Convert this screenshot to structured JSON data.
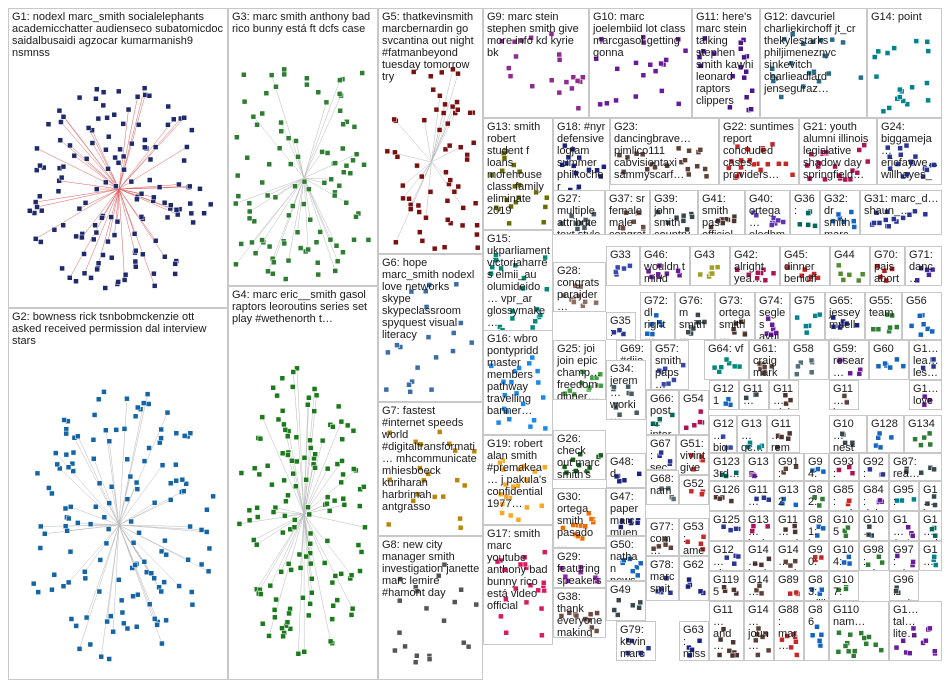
{
  "groups": [
    {
      "id": "G1",
      "label": "G1: nodexl marc_smith socialelephants academicchatter audienseco subatomicdoc saidalbusaidi agzocar kumarmanish9 nsmnss",
      "color": "#1f2a6b"
    },
    {
      "id": "G2",
      "label": "G2: bowness rick tsnbobmckenzie ott asked received permission dal interview stars",
      "color": "#1565a6"
    },
    {
      "id": "G3",
      "label": "G3: marc smith anthony bad rico bunny está ft dcfs case",
      "color": "#2e7d32"
    },
    {
      "id": "G4",
      "label": "G4: marc eric__smith gasol raptors leoroutins series set play #wethenorth t…",
      "color": "#1b7a1b"
    },
    {
      "id": "G5",
      "label": "G5: thatkevinsmith marcbernardin go svcantina out night #fatmanbeyond tuesday tomorrow try",
      "color": "#7b1010"
    },
    {
      "id": "G6",
      "label": "G6: hope marc_smith nodexl love networks skype skypeclassroom spyquest visual literacy",
      "color": "#3a6ea5"
    },
    {
      "id": "G7",
      "label": "G7: fastest #internet speeds world #digitaltransformati… mhcommunicate mhiesboeck kuriharan harbrimah antgrasso",
      "color": "#b8860b"
    },
    {
      "id": "G8",
      "label": "G8: new city manager smith investigation janette marc lemire #hamont day",
      "color": "#555555"
    },
    {
      "id": "G9",
      "label": "G9: marc stein stephen smith give more info kd kyrie bk",
      "color": "#8e2b8e"
    },
    {
      "id": "G10",
      "label": "G10: marc joelembiid lot class marcgasol getting gonna",
      "color": "#6a1b9a"
    },
    {
      "id": "G11",
      "label": "G11: here's marc stein talking stephen smith kawhi leonard raptors clippers",
      "color": "#4a148c"
    },
    {
      "id": "G12",
      "label": "G12: davcuriel charliekirchoff jt_cr thekylestarks philjimeneznyc sinkevitch charlieadlard jenseguraz…",
      "color": "#2a6a8a"
    },
    {
      "id": "G14",
      "label": "G14: point",
      "color": "#00838f"
    },
    {
      "id": "G13",
      "label": "G13: smith robert student f loans morehouse class family eliminate 2019",
      "color": "#6b6b00"
    },
    {
      "id": "G18",
      "label": "G18: #nyr defensive logjam summer philkocher blueshirtbanter…",
      "color": "#1a237e"
    },
    {
      "id": "G23",
      "label": "G23: dancingbrave… pimlico111 cabvisiontaxi sammyscarf…",
      "color": "#5d4037"
    },
    {
      "id": "G22",
      "label": "G22: suntimes report concluded cases providers…",
      "color": "#c62828"
    },
    {
      "id": "G21",
      "label": "G21: youth alumni illinois legislative shadow day springfield…",
      "color": "#ad1457"
    },
    {
      "id": "G24",
      "label": "G24: biggameja… ericfaywe… willhayes_… marvason…",
      "color": "#283593"
    },
    {
      "id": "G27",
      "label": "G27: multiple attribute text style transfer…",
      "color": "#455a64"
    },
    {
      "id": "G37",
      "label": "G37: sr female male congrat…",
      "color": "#6d4c41"
    },
    {
      "id": "G39",
      "label": "G39: john smith country…",
      "color": "#37474f"
    },
    {
      "id": "G41",
      "label": "G41: smith pas officiel…",
      "color": "#4e342e"
    },
    {
      "id": "G40",
      "label": "G40: ortega… eledhmel pinkiew…",
      "color": "#5e35b1"
    },
    {
      "id": "G36",
      "label": "G36:",
      "color": "#00695c"
    },
    {
      "id": "G32",
      "label": "G32: dr smith marc",
      "color": "#1565c0"
    },
    {
      "id": "G31",
      "label": "G31: marc_d… shaun_…",
      "color": "#283593"
    },
    {
      "id": "G15",
      "label": "G15: ukparliament victoriaharres elmii_au olumideido… vpr_ar glossymake…",
      "color": "#00897b"
    },
    {
      "id": "G28",
      "label": "G28: congrats parajder… winning thewhl…",
      "color": "#8d6e63"
    },
    {
      "id": "G33",
      "label": "G33",
      "color": "#3949ab"
    },
    {
      "id": "G46",
      "label": "G46: wouldn t mind",
      "color": "#6a1b9a"
    },
    {
      "id": "G43",
      "label": "G43",
      "color": "#9e9d24"
    },
    {
      "id": "G42",
      "label": "G42: alright yea…",
      "color": "#ad1457"
    },
    {
      "id": "G45",
      "label": "G45: dinner benioff…",
      "color": "#c62828"
    },
    {
      "id": "G44",
      "label": "G44",
      "color": "#558b2f"
    },
    {
      "id": "G70",
      "label": "G70: pais abort…",
      "color": "#b71c1c"
    },
    {
      "id": "G71",
      "label": "G71: danc… walla…",
      "color": "#4527a0"
    },
    {
      "id": "G35",
      "label": "G35: incred…",
      "color": "#283593"
    },
    {
      "id": "G72",
      "label": "G72: dl right…",
      "color": "#1565c0"
    },
    {
      "id": "G76",
      "label": "G76: m smith…",
      "color": "#37474f"
    },
    {
      "id": "G73",
      "label": "G73: ortega smith…",
      "color": "#4e342e"
    },
    {
      "id": "G74",
      "label": "G74: segles avui…",
      "color": "#6a1b9a"
    },
    {
      "id": "G75",
      "label": "G75",
      "color": "#00838f"
    },
    {
      "id": "G65",
      "label": "G65: jessey muell…",
      "color": "#1a237e"
    },
    {
      "id": "G55",
      "label": "G55: team",
      "color": "#2e7d32"
    },
    {
      "id": "G56",
      "label": "G56",
      "color": "#1565c0"
    },
    {
      "id": "G16",
      "label": "G16: wbro pontypridd master members pathway travelling banner…",
      "color": "#1e88e5"
    },
    {
      "id": "G25",
      "label": "G25: joi join epic champ… freedom dinner…",
      "color": "#43a047"
    },
    {
      "id": "G69",
      "label": "G69: #dijon patte…",
      "color": "#8e24aa"
    },
    {
      "id": "G57",
      "label": "G57: smith paps…",
      "color": "#3949ab"
    },
    {
      "id": "G64",
      "label": "G64: vf",
      "color": "#00897b"
    },
    {
      "id": "G61",
      "label": "G61: craig mark…",
      "color": "#5d4037"
    },
    {
      "id": "G58",
      "label": "G58",
      "color": "#546e7a"
    },
    {
      "id": "G59",
      "label": "G59: resear… award…",
      "color": "#6a1b9a"
    },
    {
      "id": "G60",
      "label": "G60",
      "color": "#1565c0"
    },
    {
      "id": "G1x",
      "label": "G1… lea… les…",
      "color": "#283593"
    },
    {
      "id": "G34",
      "label": "G34: jerem… worki… way startin…",
      "color": "#455a64"
    },
    {
      "id": "G66",
      "label": "G66: post… inter…",
      "color": "#00695c"
    },
    {
      "id": "G54",
      "label": "G54",
      "color": "#ad1457"
    },
    {
      "id": "G121",
      "label": "G121 orte…",
      "color": "#1565c0"
    },
    {
      "id": "G11b",
      "label": "G11… gov…",
      "color": "#37474f"
    },
    {
      "id": "G11c",
      "label": "G11… ojal…",
      "color": "#4e342e"
    },
    {
      "id": "G11d",
      "label": "G11… boo…",
      "color": "#5d4037"
    },
    {
      "id": "G11e",
      "label": "G1… love…",
      "color": "#6a1b9a"
    },
    {
      "id": "G19",
      "label": "G19: robert alan smith #premakea… j pakula's confidential 1977…",
      "color": "#f9a825"
    },
    {
      "id": "G67",
      "label": "G67: secu… 2019…",
      "color": "#283593"
    },
    {
      "id": "G51",
      "label": "G51: vivint give…",
      "color": "#c62828"
    },
    {
      "id": "G12b",
      "label": "G12… big…",
      "color": "#3949ab"
    },
    {
      "id": "G13b",
      "label": "G13… gc…",
      "color": "#00838f"
    },
    {
      "id": "G11f",
      "label": "G11… rem…",
      "color": "#4e342e"
    },
    {
      "id": "G10b",
      "label": "G10… nest…",
      "color": "#37474f"
    },
    {
      "id": "G128",
      "label": "G128",
      "color": "#1565c0"
    },
    {
      "id": "G134",
      "label": "G134",
      "color": "#2e7d32"
    },
    {
      "id": "G26",
      "label": "G26: check out marc smith's junior…",
      "color": "#1b5e20"
    },
    {
      "id": "G48",
      "label": "G48: d",
      "color": "#1a237e"
    },
    {
      "id": "G52",
      "label": "G52",
      "color": "#c62828"
    },
    {
      "id": "G123",
      "label": "G123 3rd…",
      "color": "#00695c"
    },
    {
      "id": "G13c",
      "label": "G13… jags…",
      "color": "#6a1b9a"
    },
    {
      "id": "G91",
      "label": "G91: bor…",
      "color": "#5d4037"
    },
    {
      "id": "G94",
      "label": "G94: one",
      "color": "#1565c0"
    },
    {
      "id": "G93",
      "label": "G93: billi…",
      "color": "#ad1457"
    },
    {
      "id": "G92",
      "label": "G92: 000…",
      "color": "#283593"
    },
    {
      "id": "G87",
      "label": "G87: rea…",
      "color": "#37474f"
    },
    {
      "id": "G30",
      "label": "G30: ortega smith pasado…",
      "color": "#ef6c00"
    },
    {
      "id": "G68",
      "label": "G68: nam… team…",
      "color": "#546e7a"
    },
    {
      "id": "G126",
      "label": "G126",
      "color": "#4e342e"
    },
    {
      "id": "G11g",
      "label": "G11… nev…",
      "color": "#283593"
    },
    {
      "id": "G132",
      "label": "G132",
      "color": "#1565c0"
    },
    {
      "id": "G82",
      "label": "G82: mar…",
      "color": "#2e7d32"
    },
    {
      "id": "G85",
      "label": "G85: está diff…",
      "color": "#c62828"
    },
    {
      "id": "G84",
      "label": "G84: debe diff…",
      "color": "#6a1b9a"
    },
    {
      "id": "G95",
      "label": "G95: war in…",
      "color": "#00838f"
    },
    {
      "id": "G1y",
      "label": "G1… jam… soc…",
      "color": "#37474f"
    },
    {
      "id": "G47",
      "label": "G47: paper marc muen…",
      "color": "#1a237e"
    },
    {
      "id": "G77",
      "label": "G77: com… tape…",
      "color": "#5d4037"
    },
    {
      "id": "G53",
      "label": "G53: amer… presi…",
      "color": "#c62828"
    },
    {
      "id": "G125",
      "label": "G125",
      "color": "#283593"
    },
    {
      "id": "G13d",
      "label": "G13… isab…",
      "color": "#ad1457"
    },
    {
      "id": "G11h",
      "label": "G11… soal…",
      "color": "#4e342e"
    },
    {
      "id": "G81",
      "label": "G81: hes",
      "color": "#1565c0"
    },
    {
      "id": "G105",
      "label": "G105 sur…",
      "color": "#2e7d32"
    },
    {
      "id": "G10c",
      "label": "G10… wor… cub…",
      "color": "#37474f"
    },
    {
      "id": "G1z",
      "label": "G1… 0_1 list…",
      "color": "#6a1b9a"
    },
    {
      "id": "G1w",
      "label": "G1… nal…",
      "color": "#00695c"
    },
    {
      "id": "G29",
      "label": "G29: featuring speakers epilepsy…",
      "color": "#8e24aa"
    },
    {
      "id": "G50",
      "label": "G50: nathan news thrille…",
      "color": "#1565c0"
    },
    {
      "id": "G12c",
      "label": "G12… ultro…",
      "color": "#283593"
    },
    {
      "id": "G14b",
      "label": "G14… jord…",
      "color": "#4e342e"
    },
    {
      "id": "G14c",
      "label": "G14… und…",
      "color": "#5d4037"
    },
    {
      "id": "G90",
      "label": "G90: over",
      "color": "#c62828"
    },
    {
      "id": "G104",
      "label": "G104: easy…",
      "color": "#1565c0"
    },
    {
      "id": "G98",
      "label": "G98: nds…",
      "color": "#2e7d32"
    },
    {
      "id": "G97",
      "label": "G97: adora…",
      "color": "#6a1b9a"
    },
    {
      "id": "G96",
      "label": "G96: smit…",
      "color": "#37474f"
    },
    {
      "id": "G1v",
      "label": "G1… tory co…",
      "color": "#00838f"
    },
    {
      "id": "G78",
      "label": "G78: marc smit…",
      "color": "#283593"
    },
    {
      "id": "G62",
      "label": "G62",
      "color": "#1a237e"
    },
    {
      "id": "G119",
      "label": "G119 5",
      "color": "#4e342e"
    },
    {
      "id": "G14d",
      "label": "G14…",
      "color": "#5d4037"
    },
    {
      "id": "G89",
      "label": "G89",
      "color": "#c62828"
    },
    {
      "id": "G83",
      "label": "G83: willi",
      "color": "#1565c0"
    },
    {
      "id": "G107",
      "label": "G107: urge…",
      "color": "#2e7d32"
    },
    {
      "id": "G17",
      "label": "G17: smith marc youtube anthony bad bunny rico está video official",
      "color": "#d81b60"
    },
    {
      "id": "G38",
      "label": "G38: thank everyone making…",
      "color": "#6d4c41"
    },
    {
      "id": "G49",
      "label": "G49",
      "color": "#37474f"
    },
    {
      "id": "G79",
      "label": "G79: kevin marc",
      "color": "#283593"
    },
    {
      "id": "G63",
      "label": "G63: miss stew…",
      "color": "#1a237e"
    },
    {
      "id": "G11i",
      "label": "G11… and…",
      "color": "#4e342e"
    },
    {
      "id": "G14e",
      "label": "G14… joun…",
      "color": "#5d4037"
    },
    {
      "id": "G88",
      "label": "G88: mar…",
      "color": "#c62828"
    },
    {
      "id": "G86",
      "label": "G86",
      "color": "#1565c0"
    },
    {
      "id": "G110",
      "label": "G110 nam…",
      "color": "#2e7d32"
    },
    {
      "id": "G1u",
      "label": "G1… tal… lite…",
      "color": "#6a1b9a"
    }
  ]
}
